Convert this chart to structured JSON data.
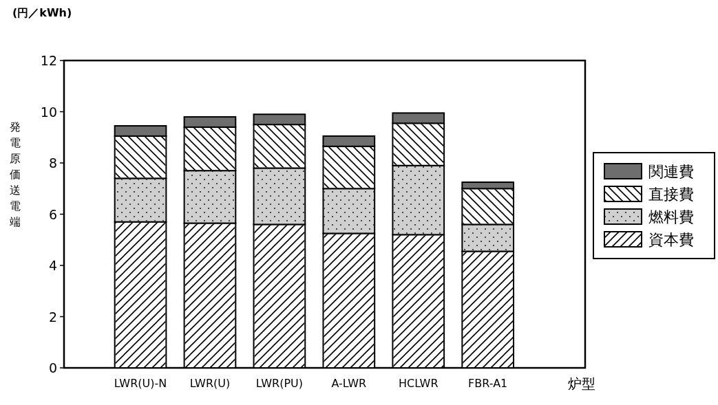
{
  "chart_data": {
    "type": "bar",
    "stacked": true,
    "categories": [
      "LWR(U)-N",
      "LWR(U)",
      "LWR(PU)",
      "A-LWR",
      "HCLWR",
      "FBR-A1"
    ],
    "series": [
      {
        "name": "資本費",
        "color": "#ffffff",
        "values": [
          5.7,
          5.65,
          5.6,
          5.25,
          5.2,
          4.55
        ]
      },
      {
        "name": "燃料費",
        "color": "#d0d0d0",
        "values": [
          1.7,
          2.05,
          2.2,
          1.75,
          2.7,
          1.05
        ]
      },
      {
        "name": "直接費",
        "color": "#ffffff",
        "values": [
          1.65,
          1.7,
          1.7,
          1.65,
          1.65,
          1.4
        ]
      },
      {
        "name": "関連費",
        "color": "#6e6e6e",
        "values": [
          0.4,
          0.4,
          0.4,
          0.4,
          0.4,
          0.25
        ]
      }
    ],
    "ylim": [
      0,
      12
    ],
    "yticks": [
      0,
      2,
      4,
      6,
      8,
      10,
      12
    ],
    "ylabel": "発電原価送電端",
    "xlabel": "炉型",
    "annotations": [
      "(円／kWh)"
    ],
    "legend": "right",
    "grid": false
  }
}
